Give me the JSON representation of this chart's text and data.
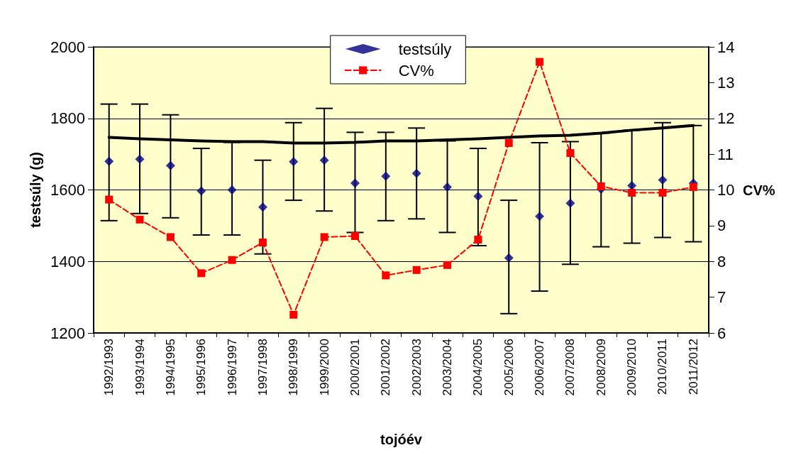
{
  "chart_data": {
    "type": "scatter",
    "xlabel": "tojóév",
    "ylabel": "testsúly (g)",
    "y2label": "CV%",
    "categories": [
      "1992/1993",
      "1993/1994",
      "1994/1995",
      "1995/1996",
      "1996/1997",
      "1997/1998",
      "1998/1999",
      "1999/2000",
      "2000/2001",
      "2001/2002",
      "2002/2003",
      "2003/2004",
      "2004/2005",
      "2005/2006",
      "2006/2007",
      "2007/2008",
      "2008/2009",
      "2009/2010",
      "2010/2011",
      "2011/2012"
    ],
    "series": [
      {
        "name": "testsúly",
        "color": "#000080",
        "marker": "diamond",
        "values": [
          1680,
          1686,
          1668,
          1597,
          1600,
          1552,
          1679,
          1683,
          1619,
          1638,
          1646,
          1608,
          1582,
          1410,
          1526,
          1563,
          1602,
          1612,
          1628,
          1619
        ],
        "errors": [
          [
            1514,
            1840
          ],
          [
            1534,
            1840
          ],
          [
            1522,
            1810
          ],
          [
            1474,
            1716
          ],
          [
            1474,
            1733
          ],
          [
            1421,
            1683
          ],
          [
            1571,
            1788
          ],
          [
            1541,
            1828
          ],
          [
            1481,
            1761
          ],
          [
            1514,
            1761
          ],
          [
            1519,
            1773
          ],
          [
            1481,
            1737
          ],
          [
            1444,
            1716
          ],
          [
            1254,
            1571
          ],
          [
            1317,
            1732
          ],
          [
            1392,
            1735
          ],
          [
            1441,
            1759
          ],
          [
            1451,
            1767
          ],
          [
            1467,
            1788
          ],
          [
            1455,
            1780
          ]
        ]
      },
      {
        "name": "CV%",
        "type": "line",
        "axis": "y2",
        "color": "#ff0000",
        "marker": "square",
        "line_style": "dashed",
        "values": [
          9.73,
          9.17,
          8.68,
          7.67,
          8.04,
          8.53,
          6.51,
          8.68,
          8.71,
          7.61,
          7.76,
          7.9,
          8.61,
          11.31,
          13.58,
          11.03,
          10.1,
          9.92,
          9.92,
          10.08
        ]
      },
      {
        "type": "line",
        "color": "#000000",
        "marker": "none",
        "line_style": "solid",
        "values": [
          1747,
          1743,
          1740,
          1737,
          1735,
          1735,
          1731,
          1731,
          1733,
          1737,
          1737,
          1740,
          1743,
          1747,
          1751,
          1753,
          1759,
          1767,
          1773,
          1780
        ]
      }
    ],
    "ylim": [
      1200,
      2000
    ],
    "yticks": [
      1200,
      1400,
      1600,
      1800,
      2000
    ],
    "y2lim": [
      6,
      14
    ],
    "y2ticks": [
      6,
      7,
      8,
      9,
      10,
      11,
      12,
      13,
      14
    ],
    "grid": "y",
    "legend": "top"
  }
}
